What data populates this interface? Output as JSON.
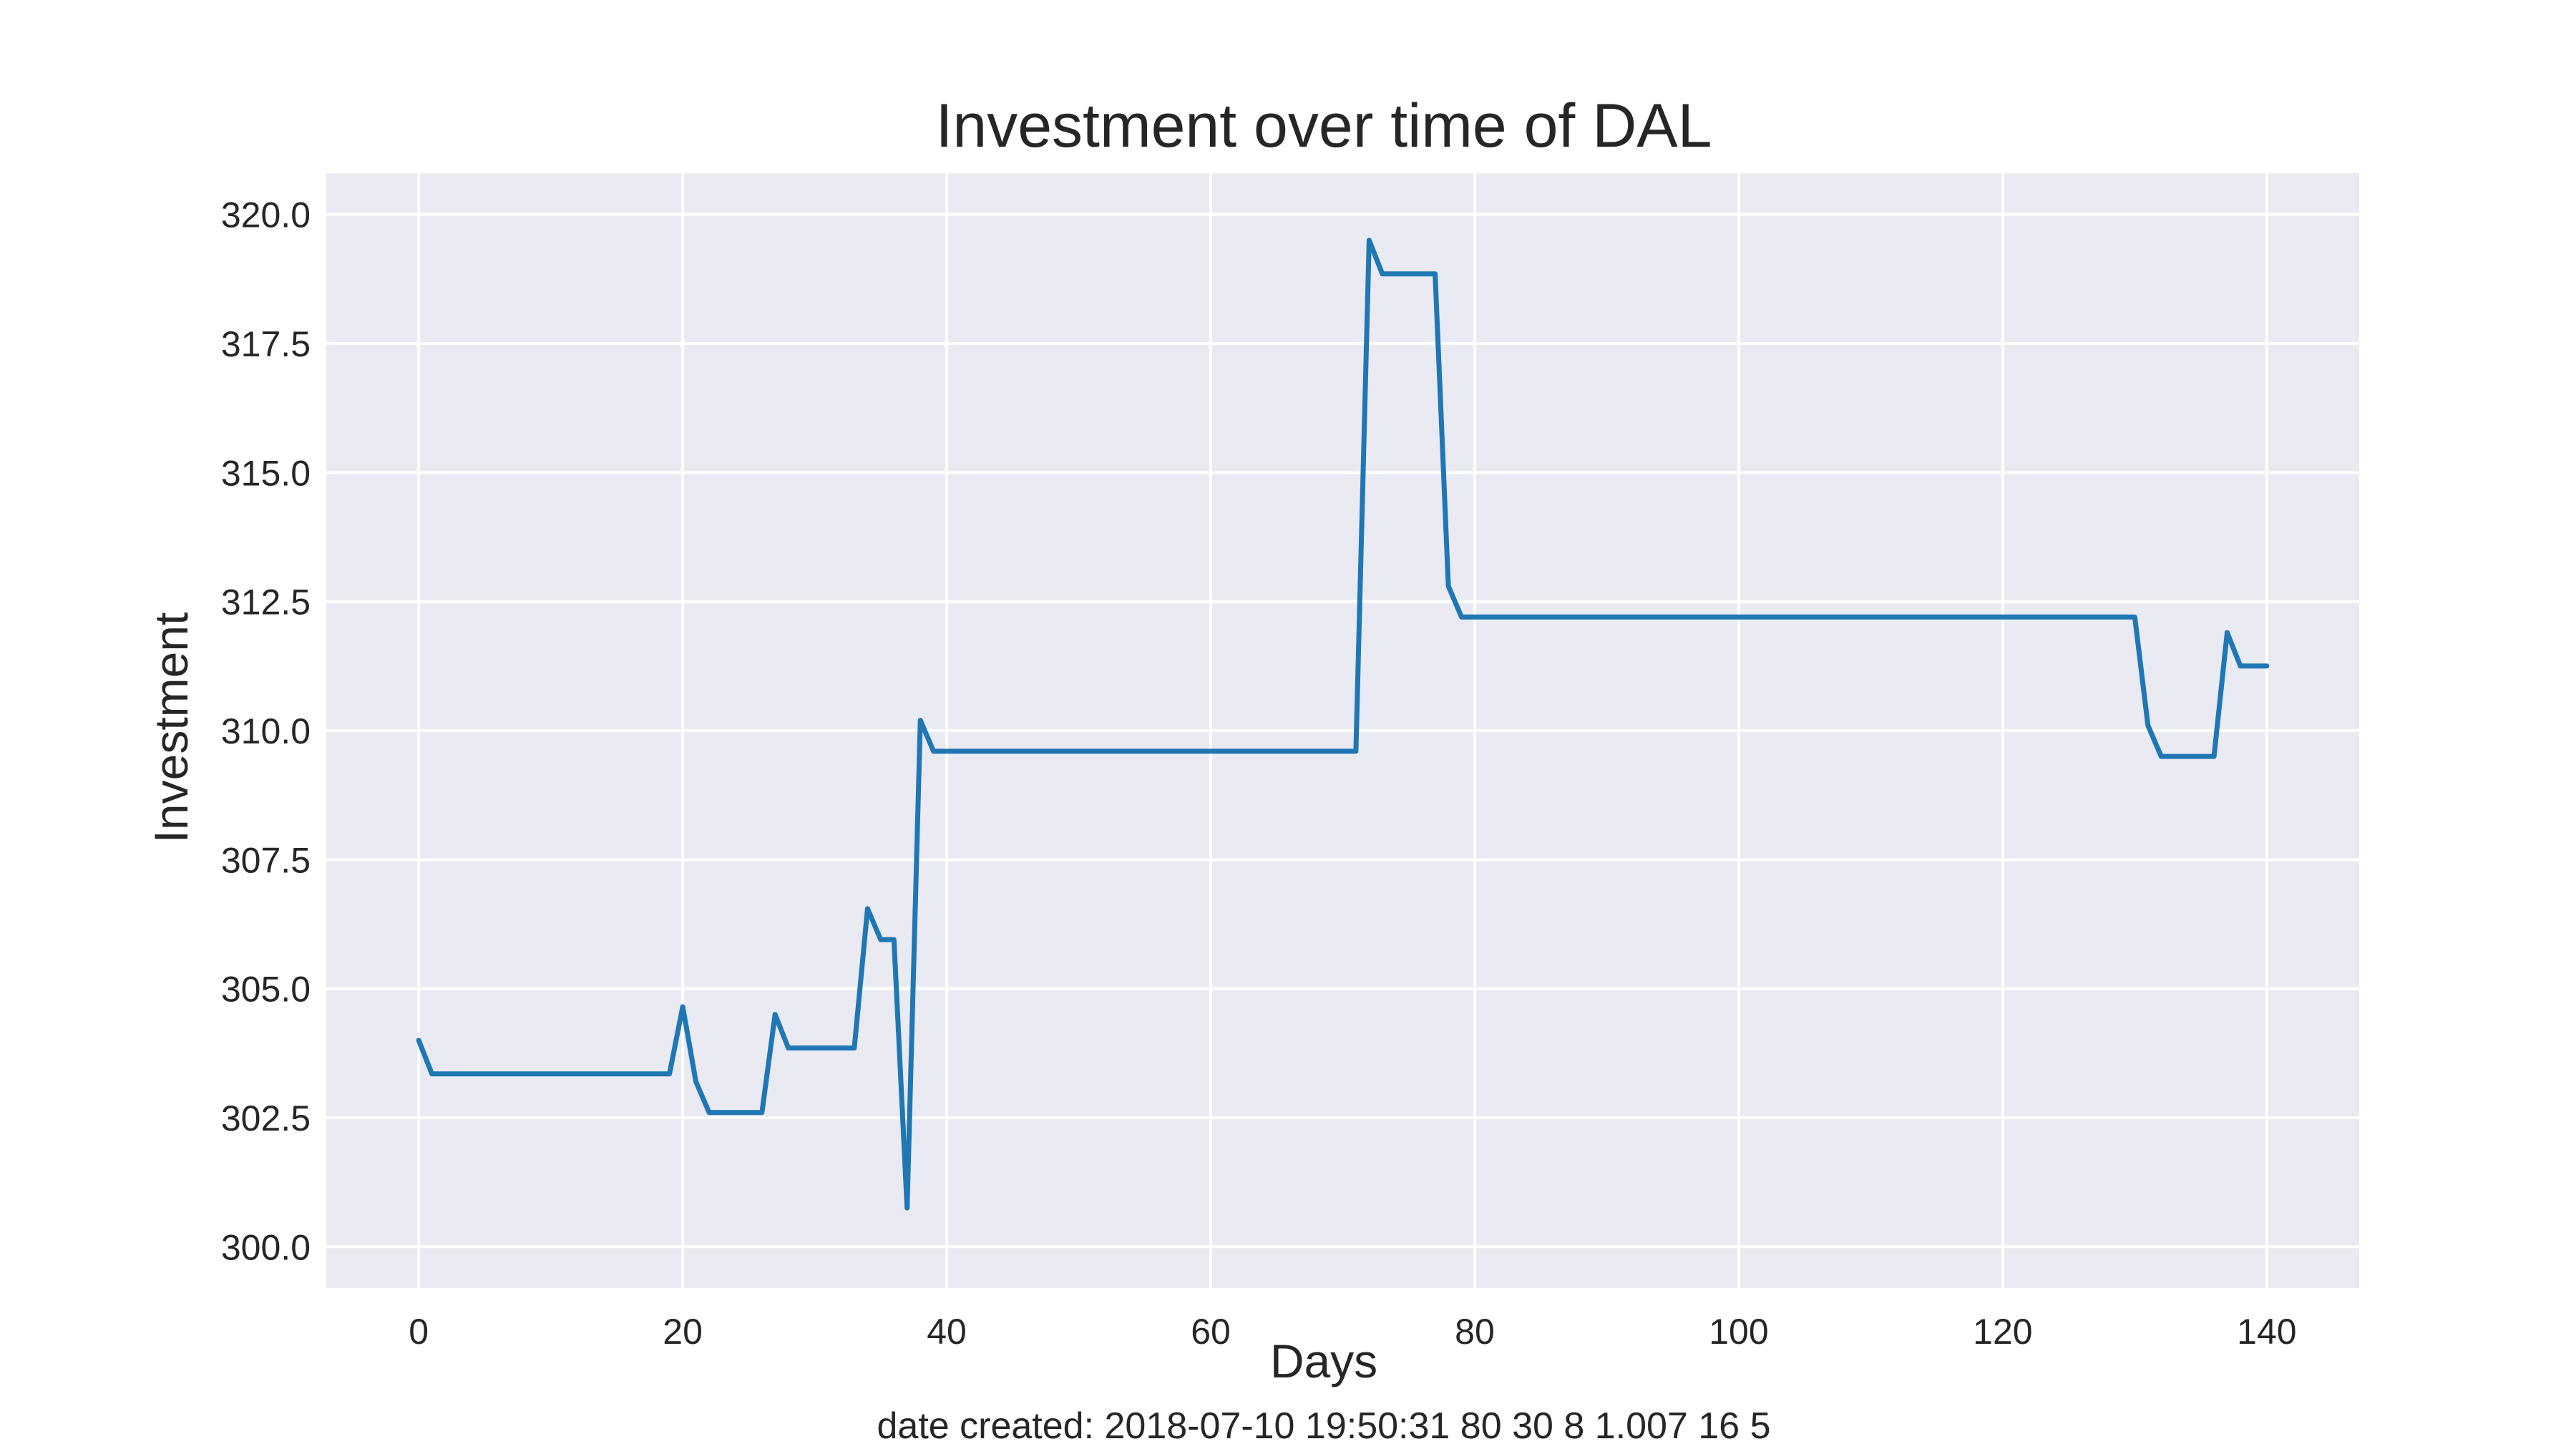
{
  "chart_data": {
    "type": "line",
    "title": "Investment over time of DAL",
    "xlabel": "Days",
    "ylabel": "Investment",
    "xlim": [
      -7,
      147
    ],
    "ylim": [
      299.2,
      320.8
    ],
    "xticks": [
      0,
      20,
      40,
      60,
      80,
      100,
      120,
      140
    ],
    "yticks": [
      300.0,
      302.5,
      305.0,
      307.5,
      310.0,
      312.5,
      315.0,
      317.5,
      320.0
    ],
    "grid": true,
    "style": {
      "background": "#eaeaf2",
      "grid_color": "#ffffff",
      "line_color": "#1f77b4"
    },
    "series": [
      {
        "x": [
          0,
          1,
          19,
          20,
          21,
          22,
          26,
          27,
          28,
          33,
          34,
          35,
          36,
          37,
          38,
          39,
          71,
          72,
          73,
          77,
          78,
          79,
          130,
          131,
          132,
          136,
          137,
          138,
          140
        ],
        "y": [
          304.0,
          303.35,
          303.35,
          304.65,
          303.2,
          302.6,
          302.6,
          304.5,
          303.85,
          303.85,
          306.55,
          305.95,
          305.95,
          300.75,
          310.2,
          309.6,
          309.6,
          319.5,
          318.85,
          318.85,
          312.8,
          312.2,
          312.2,
          310.1,
          309.5,
          309.5,
          311.9,
          311.25,
          311.25
        ]
      }
    ]
  },
  "footnote": "date created: 2018-07-10 19:50:31 80 30 8 1.007 16 5"
}
